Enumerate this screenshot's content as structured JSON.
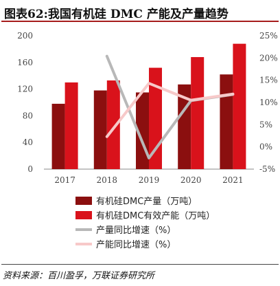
{
  "header": {
    "title": "图表62:我国有机硅 DMC 产能及产量趋势"
  },
  "source": "资料来源：百川盈孚，万联证券研究所",
  "chart_data": {
    "type": "bar",
    "categories": [
      "2017",
      "2018",
      "2019",
      "2020",
      "2021"
    ],
    "series": [
      {
        "name": "有机硅DMC产量（万吨）",
        "kind": "bar",
        "axis": "left",
        "color": "#8b0f0f",
        "values": [
          98,
          118,
          115,
          127,
          142
        ]
      },
      {
        "name": "有机硅DMC有效产能（万吨）",
        "kind": "bar",
        "axis": "left",
        "color": "#d9121b",
        "values": [
          130,
          133,
          152,
          168,
          188
        ]
      },
      {
        "name": "产量同比增速（%）",
        "kind": "line",
        "axis": "right",
        "color": "#b8b8b8",
        "values": [
          null,
          20.4,
          -2.5,
          10.4,
          11.8
        ]
      },
      {
        "name": "产能同比增速（%）",
        "kind": "line",
        "axis": "right",
        "color": "#f7c9c9",
        "values": [
          null,
          2.3,
          14.3,
          10.5,
          11.9
        ]
      }
    ],
    "y_left": {
      "min": 0,
      "max": 200,
      "ticks": [
        "0",
        "40",
        "80",
        "120",
        "160",
        "200"
      ]
    },
    "y_right": {
      "min": -5,
      "max": 25,
      "ticks": [
        "-5%",
        "0%",
        "5%",
        "10%",
        "15%",
        "20%",
        "25%"
      ]
    },
    "legend_position": "bottom",
    "grid": false
  }
}
